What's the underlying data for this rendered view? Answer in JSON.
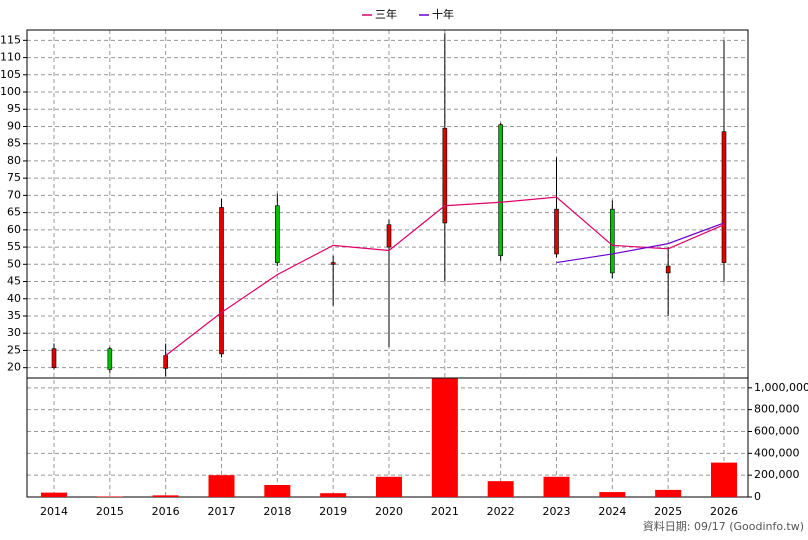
{
  "chart_data": [
    {
      "type": "candlestick",
      "open": [
        20,
        25.5,
        19.8,
        24,
        67,
        50,
        55,
        62,
        90.5,
        53,
        66,
        47.5,
        50.5
      ],
      "high": [
        27,
        26,
        27,
        69,
        70.5,
        52.5,
        63,
        117,
        91,
        81,
        68.5,
        55,
        115
      ],
      "low": [
        19.5,
        18.5,
        17.5,
        23,
        49.5,
        38,
        26,
        45,
        51,
        52,
        46,
        35,
        45
      ],
      "close": [
        25.5,
        19.5,
        23.5,
        66.5,
        50.5,
        50.5,
        61.5,
        89.5,
        52.5,
        66,
        47.5,
        49.5,
        88.5
      ],
      "up_color": "#e00000",
      "down_color": "#00c000",
      "series": [
        {
          "name": "三年",
          "color": "#e0006a",
          "values": [
            null,
            null,
            23.5,
            36,
            47,
            55.5,
            54,
            67,
            68,
            69.5,
            55.5,
            54.5,
            61.5
          ]
        },
        {
          "name": "十年",
          "color": "#6a00d0",
          "values": [
            null,
            null,
            null,
            null,
            null,
            null,
            null,
            null,
            null,
            50.5,
            53,
            56,
            62
          ]
        }
      ],
      "ylim": [
        17,
        118
      ],
      "yticks": [
        20,
        25,
        30,
        35,
        40,
        45,
        50,
        55,
        60,
        65,
        70,
        75,
        80,
        85,
        90,
        95,
        100,
        105,
        110,
        115
      ],
      "grid": true,
      "legend": "top"
    },
    {
      "type": "bar",
      "categories": [
        "2014",
        "2015",
        "2016",
        "2017",
        "2018",
        "2019",
        "2020",
        "2021",
        "2022",
        "2023",
        "2024",
        "2025",
        "2026"
      ],
      "values": [
        40000,
        5000,
        15000,
        200000,
        110000,
        35000,
        185000,
        1085000,
        145000,
        185000,
        45000,
        65000,
        315000
      ],
      "color": "#ff0000",
      "ylim": [
        0,
        1090000
      ],
      "yticks": [
        0,
        {
          "value": 200000,
          "label": "200,000"
        },
        {
          "value": 400000,
          "label": "400,000"
        },
        {
          "value": 600000,
          "label": "600,000"
        },
        {
          "value": 800000,
          "label": "800,000"
        },
        {
          "value": 1000000,
          "label": "1,000,000"
        }
      ],
      "grid": true
    }
  ],
  "footnote": "資料日期: 09/17  (Goodinfo.tw)"
}
